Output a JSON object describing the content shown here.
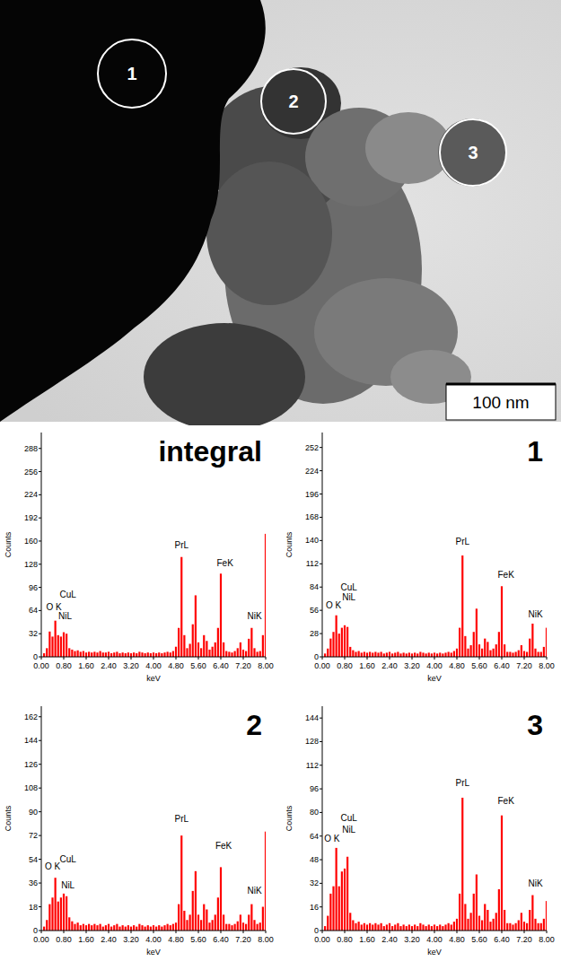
{
  "image": {
    "markers": [
      "1",
      "2",
      "3"
    ],
    "scale_bar": "100 nm"
  },
  "chart_data": [
    {
      "type": "bar",
      "title": "integral",
      "x_label": "keV",
      "y_label": "Counts",
      "color": "#ff0000",
      "x": [
        0,
        0.1,
        0.2,
        0.3,
        0.4,
        0.5,
        0.6,
        0.7,
        0.8,
        0.9,
        1,
        1.1,
        1.2,
        1.3,
        1.4,
        1.5,
        1.6,
        1.7,
        1.8,
        1.9,
        2,
        2.1,
        2.2,
        2.3,
        2.4,
        2.5,
        2.6,
        2.7,
        2.8,
        2.9,
        3,
        3.1,
        3.2,
        3.3,
        3.4,
        3.5,
        3.6,
        3.7,
        3.8,
        3.9,
        4,
        4.1,
        4.2,
        4.3,
        4.4,
        4.5,
        4.6,
        4.7,
        4.8,
        4.9,
        5,
        5.1,
        5.2,
        5.3,
        5.4,
        5.5,
        5.6,
        5.7,
        5.8,
        5.9,
        6,
        6.1,
        6.2,
        6.3,
        6.4,
        6.5,
        6.6,
        6.7,
        6.8,
        6.9,
        7,
        7.1,
        7.2,
        7.3,
        7.4,
        7.5,
        7.6,
        7.7,
        7.8,
        7.9,
        8
      ],
      "values": [
        0,
        5,
        12,
        35,
        28,
        50,
        30,
        28,
        34,
        32,
        12,
        10,
        8,
        9,
        7,
        8,
        6,
        7,
        6,
        7,
        6,
        8,
        6,
        6,
        7,
        5,
        6,
        7,
        5,
        6,
        5,
        6,
        5,
        6,
        5,
        7,
        6,
        5,
        6,
        5,
        6,
        5,
        6,
        5,
        6,
        7,
        6,
        8,
        14,
        40,
        138,
        30,
        12,
        18,
        45,
        85,
        20,
        12,
        30,
        22,
        10,
        14,
        20,
        40,
        115,
        20,
        8,
        7,
        6,
        8,
        12,
        20,
        10,
        8,
        25,
        40,
        12,
        7,
        8,
        30,
        170
      ],
      "xlim": [
        0,
        8
      ],
      "ylim": [
        0,
        310
      ],
      "xticks": [
        {
          "value": 0,
          "label": "0.00"
        },
        {
          "value": 0.8,
          "label": "0.80"
        },
        {
          "value": 1.6,
          "label": "1.60"
        },
        {
          "value": 2.4,
          "label": "2.40"
        },
        {
          "value": 3.2,
          "label": "3.20"
        },
        {
          "value": 4,
          "label": "4.00"
        },
        {
          "value": 4.8,
          "label": "4.80"
        },
        {
          "value": 5.6,
          "label": "5.60"
        },
        {
          "value": 6.4,
          "label": "6.40"
        },
        {
          "value": 7.2,
          "label": "7.20"
        },
        {
          "value": 8,
          "label": "8.00"
        }
      ],
      "yticks": [
        0,
        32,
        64,
        96,
        128,
        160,
        192,
        224,
        256,
        288
      ],
      "annotations": [
        {
          "text": "O K",
          "x": 0.45,
          "y": 65
        },
        {
          "text": "CuL",
          "x": 0.95,
          "y": 82
        },
        {
          "text": "NiL",
          "x": 0.85,
          "y": 52
        },
        {
          "text": "PrL",
          "x": 5.0,
          "y": 150
        },
        {
          "text": "FeK",
          "x": 6.55,
          "y": 125
        },
        {
          "text": "NiK",
          "x": 7.6,
          "y": 52
        }
      ]
    },
    {
      "type": "bar",
      "title": "1",
      "x_label": "keV",
      "y_label": "Counts",
      "color": "#ff0000",
      "x": [
        0,
        0.1,
        0.2,
        0.3,
        0.4,
        0.5,
        0.6,
        0.7,
        0.8,
        0.9,
        1,
        1.1,
        1.2,
        1.3,
        1.4,
        1.5,
        1.6,
        1.7,
        1.8,
        1.9,
        2,
        2.1,
        2.2,
        2.3,
        2.4,
        2.5,
        2.6,
        2.7,
        2.8,
        2.9,
        3,
        3.1,
        3.2,
        3.3,
        3.4,
        3.5,
        3.6,
        3.7,
        3.8,
        3.9,
        4,
        4.1,
        4.2,
        4.3,
        4.4,
        4.5,
        4.6,
        4.7,
        4.8,
        4.9,
        5,
        5.1,
        5.2,
        5.3,
        5.4,
        5.5,
        5.6,
        5.7,
        5.8,
        5.9,
        6,
        6.1,
        6.2,
        6.3,
        6.4,
        6.5,
        6.6,
        6.7,
        6.8,
        6.9,
        7,
        7.1,
        7.2,
        7.3,
        7.4,
        7.5,
        7.6,
        7.7,
        7.8,
        7.9,
        8
      ],
      "values": [
        0,
        4,
        10,
        22,
        30,
        50,
        28,
        35,
        38,
        36,
        12,
        8,
        6,
        7,
        5,
        6,
        5,
        6,
        5,
        6,
        5,
        6,
        4,
        5,
        6,
        4,
        5,
        6,
        4,
        5,
        4,
        5,
        4,
        5,
        4,
        6,
        5,
        4,
        5,
        4,
        5,
        4,
        5,
        4,
        5,
        6,
        5,
        7,
        10,
        35,
        122,
        25,
        10,
        14,
        30,
        58,
        15,
        10,
        22,
        18,
        8,
        10,
        15,
        30,
        85,
        15,
        6,
        6,
        5,
        6,
        8,
        14,
        7,
        6,
        22,
        40,
        10,
        6,
        6,
        12,
        35
      ],
      "xlim": [
        0,
        8
      ],
      "ylim": [
        0,
        270
      ],
      "xticks": [
        {
          "value": 0,
          "label": "0.00"
        },
        {
          "value": 0.8,
          "label": "0.80"
        },
        {
          "value": 1.6,
          "label": "1.60"
        },
        {
          "value": 2.4,
          "label": "2.40"
        },
        {
          "value": 3.2,
          "label": "3.20"
        },
        {
          "value": 4,
          "label": "4.00"
        },
        {
          "value": 4.8,
          "label": "4.80"
        },
        {
          "value": 5.6,
          "label": "5.60"
        },
        {
          "value": 6.4,
          "label": "6.40"
        },
        {
          "value": 7.2,
          "label": "7.20"
        },
        {
          "value": 8,
          "label": "8.00"
        }
      ],
      "yticks": [
        0,
        28,
        56,
        84,
        112,
        140,
        168,
        196,
        224,
        252
      ],
      "annotations": [
        {
          "text": "O K",
          "x": 0.4,
          "y": 58
        },
        {
          "text": "NiL",
          "x": 0.95,
          "y": 68
        },
        {
          "text": "CuL",
          "x": 0.95,
          "y": 80
        },
        {
          "text": "PrL",
          "x": 5.0,
          "y": 135
        },
        {
          "text": "FeK",
          "x": 6.55,
          "y": 95
        },
        {
          "text": "NiK",
          "x": 7.6,
          "y": 48
        }
      ]
    },
    {
      "type": "bar",
      "title": "2",
      "x_label": "keV",
      "y_label": "Counts",
      "color": "#ff0000",
      "x": [
        0,
        0.1,
        0.2,
        0.3,
        0.4,
        0.5,
        0.6,
        0.7,
        0.8,
        0.9,
        1,
        1.1,
        1.2,
        1.3,
        1.4,
        1.5,
        1.6,
        1.7,
        1.8,
        1.9,
        2,
        2.1,
        2.2,
        2.3,
        2.4,
        2.5,
        2.6,
        2.7,
        2.8,
        2.9,
        3,
        3.1,
        3.2,
        3.3,
        3.4,
        3.5,
        3.6,
        3.7,
        3.8,
        3.9,
        4,
        4.1,
        4.2,
        4.3,
        4.4,
        4.5,
        4.6,
        4.7,
        4.8,
        4.9,
        5,
        5.1,
        5.2,
        5.3,
        5.4,
        5.5,
        5.6,
        5.7,
        5.8,
        5.9,
        6,
        6.1,
        6.2,
        6.3,
        6.4,
        6.5,
        6.6,
        6.7,
        6.8,
        6.9,
        7,
        7.1,
        7.2,
        7.3,
        7.4,
        7.5,
        7.6,
        7.7,
        7.8,
        7.9,
        8
      ],
      "values": [
        0,
        3,
        8,
        20,
        25,
        40,
        22,
        25,
        28,
        26,
        10,
        7,
        5,
        6,
        4,
        5,
        4,
        5,
        4,
        5,
        4,
        5,
        3,
        4,
        5,
        3,
        4,
        5,
        3,
        4,
        3,
        4,
        3,
        4,
        3,
        5,
        4,
        3,
        4,
        3,
        4,
        3,
        4,
        3,
        4,
        5,
        4,
        5,
        6,
        20,
        72,
        15,
        8,
        12,
        30,
        45,
        12,
        8,
        20,
        16,
        6,
        8,
        12,
        25,
        48,
        12,
        5,
        5,
        4,
        5,
        7,
        12,
        6,
        5,
        12,
        20,
        8,
        5,
        6,
        18,
        75
      ],
      "xlim": [
        0,
        8
      ],
      "ylim": [
        0,
        170
      ],
      "xticks": [
        {
          "value": 0,
          "label": "0.00"
        },
        {
          "value": 0.8,
          "label": "0.80"
        },
        {
          "value": 1.6,
          "label": "1.60"
        },
        {
          "value": 2.4,
          "label": "2.40"
        },
        {
          "value": 3.2,
          "label": "3.20"
        },
        {
          "value": 4,
          "label": "4.00"
        },
        {
          "value": 4.8,
          "label": "4.80"
        },
        {
          "value": 5.6,
          "label": "5.60"
        },
        {
          "value": 6.4,
          "label": "6.40"
        },
        {
          "value": 7.2,
          "label": "7.20"
        },
        {
          "value": 8,
          "label": "8.00"
        }
      ],
      "yticks": [
        0,
        18,
        36,
        54,
        72,
        90,
        108,
        126,
        144,
        162
      ],
      "annotations": [
        {
          "text": "O K",
          "x": 0.4,
          "y": 46
        },
        {
          "text": "CuL",
          "x": 0.95,
          "y": 52
        },
        {
          "text": "NiL",
          "x": 0.95,
          "y": 32
        },
        {
          "text": "PrL",
          "x": 5.0,
          "y": 82
        },
        {
          "text": "FeK",
          "x": 6.5,
          "y": 62
        },
        {
          "text": "NiK",
          "x": 7.6,
          "y": 28
        }
      ]
    },
    {
      "type": "bar",
      "title": "3",
      "x_label": "keV",
      "y_label": "Counts",
      "color": "#ff0000",
      "x": [
        0,
        0.1,
        0.2,
        0.3,
        0.4,
        0.5,
        0.6,
        0.7,
        0.8,
        0.9,
        1,
        1.1,
        1.2,
        1.3,
        1.4,
        1.5,
        1.6,
        1.7,
        1.8,
        1.9,
        2,
        2.1,
        2.2,
        2.3,
        2.4,
        2.5,
        2.6,
        2.7,
        2.8,
        2.9,
        3,
        3.1,
        3.2,
        3.3,
        3.4,
        3.5,
        3.6,
        3.7,
        3.8,
        3.9,
        4,
        4.1,
        4.2,
        4.3,
        4.4,
        4.5,
        4.6,
        4.7,
        4.8,
        4.9,
        5,
        5.1,
        5.2,
        5.3,
        5.4,
        5.5,
        5.6,
        5.7,
        5.8,
        5.9,
        6,
        6.1,
        6.2,
        6.3,
        6.4,
        6.5,
        6.6,
        6.7,
        6.8,
        6.9,
        7,
        7.1,
        7.2,
        7.3,
        7.4,
        7.5,
        7.6,
        7.7,
        7.8,
        7.9,
        8
      ],
      "values": [
        0,
        3,
        10,
        25,
        30,
        56,
        30,
        40,
        42,
        50,
        12,
        7,
        5,
        6,
        4,
        5,
        4,
        5,
        4,
        5,
        4,
        5,
        3,
        4,
        5,
        3,
        4,
        5,
        3,
        4,
        3,
        4,
        3,
        4,
        3,
        5,
        4,
        3,
        4,
        3,
        4,
        3,
        4,
        3,
        4,
        5,
        4,
        6,
        8,
        25,
        90,
        18,
        8,
        12,
        25,
        38,
        10,
        7,
        18,
        14,
        6,
        8,
        12,
        28,
        78,
        14,
        5,
        5,
        4,
        5,
        7,
        12,
        6,
        5,
        14,
        24,
        8,
        5,
        5,
        8,
        20
      ],
      "xlim": [
        0,
        8
      ],
      "ylim": [
        0,
        152
      ],
      "xticks": [
        {
          "value": 0,
          "label": "0.00"
        },
        {
          "value": 0.8,
          "label": "0.80"
        },
        {
          "value": 1.6,
          "label": "1.60"
        },
        {
          "value": 2.4,
          "label": "2.40"
        },
        {
          "value": 3.2,
          "label": "3.20"
        },
        {
          "value": 4,
          "label": "4.00"
        },
        {
          "value": 4.8,
          "label": "4.80"
        },
        {
          "value": 5.6,
          "label": "5.60"
        },
        {
          "value": 6.4,
          "label": "6.40"
        },
        {
          "value": 7.2,
          "label": "7.20"
        },
        {
          "value": 8,
          "label": "8.00"
        }
      ],
      "yticks": [
        0,
        16,
        32,
        48,
        64,
        80,
        96,
        112,
        128,
        144
      ],
      "annotations": [
        {
          "text": "O K",
          "x": 0.35,
          "y": 60
        },
        {
          "text": "NiL",
          "x": 0.95,
          "y": 66
        },
        {
          "text": "CuL",
          "x": 0.95,
          "y": 74
        },
        {
          "text": "PrL",
          "x": 5.0,
          "y": 98
        },
        {
          "text": "FeK",
          "x": 6.55,
          "y": 86
        },
        {
          "text": "NiK",
          "x": 7.6,
          "y": 30
        }
      ]
    }
  ]
}
